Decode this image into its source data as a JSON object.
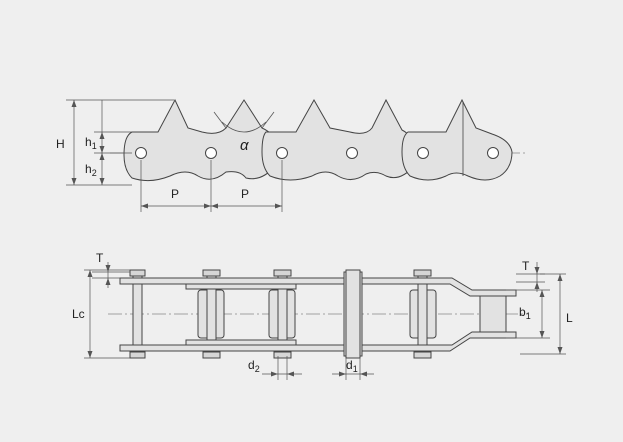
{
  "labels": {
    "H": "H",
    "h1": "h",
    "h1_sub": "1",
    "h2": "h",
    "h2_sub": "2",
    "alpha": "α",
    "P_left": "P",
    "P_right": "P",
    "T_left": "T",
    "T_right": "T",
    "Lc": "Lc",
    "b1": "b",
    "b1_sub": "1",
    "L": "L",
    "d2": "d",
    "d2_sub": "2",
    "d1": "d",
    "d1_sub": "1"
  },
  "colors": {
    "background": "#efefef",
    "part_fill": "#e2e2e2",
    "outline": "#444444",
    "dim_line": "#555555",
    "center_line": "#888888"
  }
}
